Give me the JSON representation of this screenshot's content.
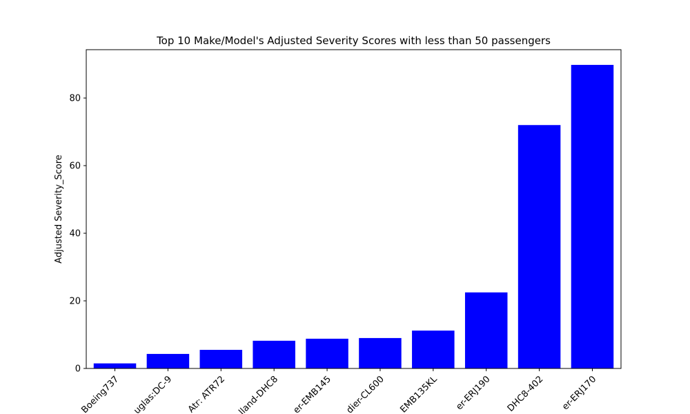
{
  "chart_data": {
    "type": "bar",
    "title": "Top 10 Make/Model's Adjusted Severity Scores with less than 50 passengers",
    "xlabel": "",
    "ylabel": "Adjusted Severity_Score",
    "categories": [
      "Boeing737",
      "uglas:DC-9",
      "Atr: ATR72",
      "lland-DHC8",
      "er-EMB145",
      "dier-CL600",
      "EMB135KL",
      "er-ERJ190",
      "DHC8-402",
      "er-ERJ170"
    ],
    "values": [
      1.5,
      4.3,
      5.5,
      8.2,
      8.8,
      9.0,
      11.2,
      22.5,
      72.0,
      89.8
    ],
    "ylim": [
      0,
      94.3
    ],
    "yticks": [
      0,
      20,
      40,
      60,
      80
    ],
    "grid": false,
    "bar_color": "#0000ff"
  }
}
